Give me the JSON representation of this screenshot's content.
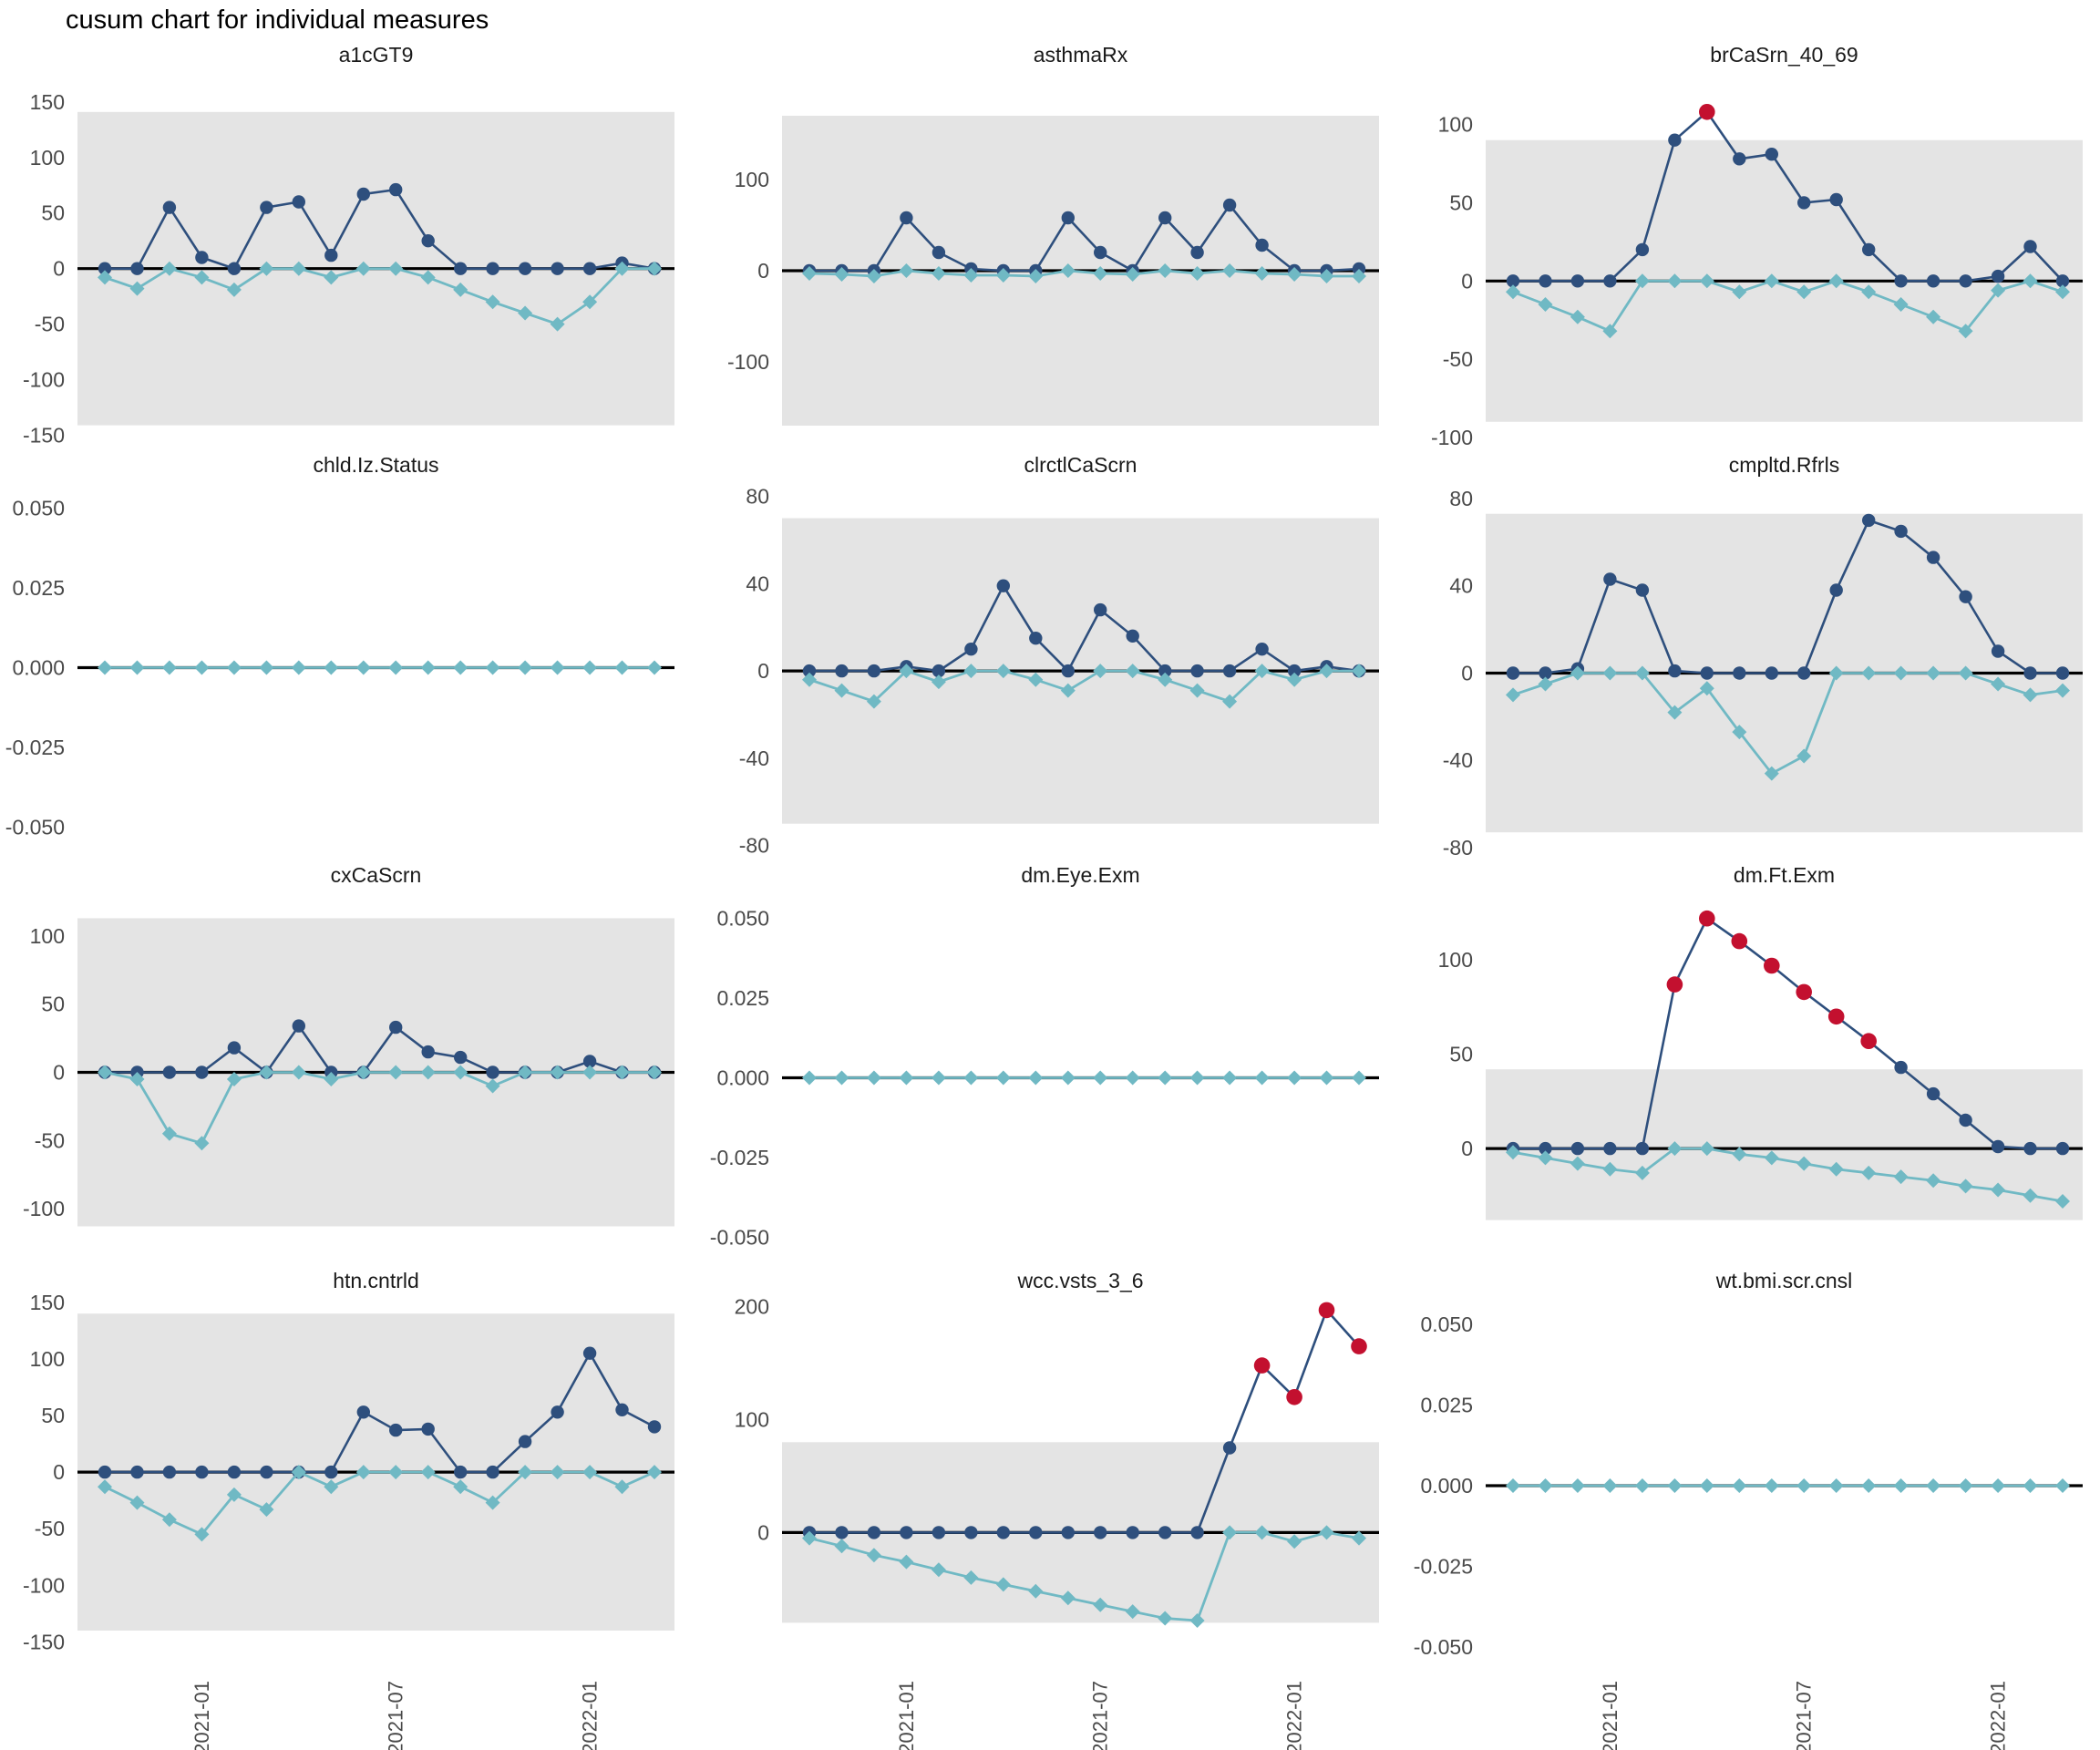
{
  "chart_data": {
    "type": "line",
    "title": "cusum chart for individual measures",
    "subtitle": "",
    "legend_position": "none",
    "grid": "off",
    "x": {
      "n_points": 18,
      "tick_indices": [
        3,
        9,
        15
      ],
      "tick_labels": [
        "2021-01",
        "2021-07",
        "2022-01"
      ]
    },
    "colors": {
      "upper_series": "#2e4f7d",
      "lower_series": "#70b9c4",
      "signal_point": "#c3102f",
      "control_band": "#e4e4e4",
      "zero_line": "#000000",
      "tick_text": "#4a4a4a",
      "facet_title_text": "#1a1a1a"
    },
    "facets": [
      {
        "title": "a1cGT9",
        "ylim": [
          -152,
          172
        ],
        "band": [
          -141,
          141
        ],
        "yticks": [
          {
            "v": 150,
            "label": "150"
          },
          {
            "v": 100,
            "label": "100"
          },
          {
            "v": 50,
            "label": "50"
          },
          {
            "v": 0,
            "label": "0"
          },
          {
            "v": -50,
            "label": "-50"
          },
          {
            "v": -100,
            "label": "-100"
          },
          {
            "v": -150,
            "label": "-150"
          }
        ],
        "upper": [
          0,
          0,
          55,
          10,
          0,
          55,
          60,
          12,
          67,
          71,
          25,
          0,
          0,
          0,
          0,
          0,
          5,
          0
        ],
        "lower": [
          -8,
          -18,
          0,
          -8,
          -19,
          0,
          0,
          -8,
          0,
          0,
          -8,
          -19,
          -30,
          -40,
          -50,
          -30,
          0,
          0
        ],
        "signal_indices": []
      },
      {
        "title": "asthmaRx",
        "ylim": [
          -183,
          212
        ],
        "band": [
          -170,
          170
        ],
        "yticks": [
          {
            "v": 100,
            "label": "100"
          },
          {
            "v": 0,
            "label": "0"
          },
          {
            "v": -100,
            "label": "-100"
          }
        ],
        "upper": [
          0,
          0,
          0,
          58,
          20,
          2,
          0,
          0,
          58,
          20,
          0,
          58,
          20,
          72,
          28,
          0,
          0,
          2
        ],
        "lower": [
          -3,
          -4,
          -6,
          0,
          -3,
          -5,
          -5,
          -6,
          0,
          -3,
          -4,
          0,
          -3,
          0,
          -3,
          -4,
          -6,
          -6
        ],
        "signal_indices": []
      },
      {
        "title": "brCaSrn_40_69",
        "ylim": [
          -100,
          130
        ],
        "band": [
          -90,
          90
        ],
        "yticks": [
          {
            "v": 100,
            "label": "100"
          },
          {
            "v": 50,
            "label": "50"
          },
          {
            "v": 0,
            "label": "0"
          },
          {
            "v": -50,
            "label": "-50"
          },
          {
            "v": -100,
            "label": "-100"
          }
        ],
        "upper": [
          0,
          0,
          0,
          0,
          20,
          90,
          108,
          78,
          81,
          50,
          52,
          20,
          0,
          0,
          0,
          3,
          22,
          0
        ],
        "lower": [
          -7,
          -15,
          -23,
          -32,
          0,
          0,
          0,
          -7,
          0,
          -7,
          0,
          -7,
          -15,
          -23,
          -32,
          -6,
          0,
          -7
        ],
        "signal_indices": [
          6
        ]
      },
      {
        "title": "chld.Iz.Status",
        "ylim": [
          -0.0565,
          0.0565
        ],
        "band": null,
        "yticks": [
          {
            "v": 0.05,
            "label": "0.050"
          },
          {
            "v": 0.025,
            "label": "0.025"
          },
          {
            "v": 0.0,
            "label": "0.000"
          },
          {
            "v": -0.025,
            "label": "-0.025"
          },
          {
            "v": -0.05,
            "label": "-0.050"
          }
        ],
        "upper": null,
        "lower": [
          0,
          0,
          0,
          0,
          0,
          0,
          0,
          0,
          0,
          0,
          0,
          0,
          0,
          0,
          0,
          0,
          0,
          0
        ],
        "signal_indices": []
      },
      {
        "title": "clrctlCaScrn",
        "ylim": [
          -81,
          84
        ],
        "band": [
          -70,
          70
        ],
        "yticks": [
          {
            "v": 80,
            "label": "80"
          },
          {
            "v": 40,
            "label": "40"
          },
          {
            "v": 0,
            "label": "0"
          },
          {
            "v": -40,
            "label": "-40"
          },
          {
            "v": -80,
            "label": "-80"
          }
        ],
        "upper": [
          0,
          0,
          0,
          2,
          0,
          10,
          39,
          15,
          0,
          28,
          16,
          0,
          0,
          0,
          10,
          0,
          2,
          0
        ],
        "lower": [
          -4,
          -9,
          -14,
          0,
          -5,
          0,
          0,
          -4,
          -9,
          0,
          0,
          -4,
          -9,
          -14,
          0,
          -4,
          0,
          0
        ],
        "signal_indices": []
      },
      {
        "title": "cmpltd.Rfrls",
        "ylim": [
          -80,
          85
        ],
        "band": [
          -73,
          73
        ],
        "yticks": [
          {
            "v": 80,
            "label": "80"
          },
          {
            "v": 40,
            "label": "40"
          },
          {
            "v": 0,
            "label": "0"
          },
          {
            "v": -40,
            "label": "-40"
          },
          {
            "v": -80,
            "label": "-80"
          }
        ],
        "upper": [
          0,
          0,
          2,
          43,
          38,
          1,
          0,
          0,
          0,
          0,
          38,
          70,
          65,
          53,
          35,
          10,
          0,
          0
        ],
        "lower": [
          -10,
          -5,
          0,
          0,
          0,
          -18,
          -7,
          -27,
          -46,
          -38,
          0,
          0,
          0,
          0,
          0,
          -5,
          -10,
          -8
        ],
        "signal_indices": []
      },
      {
        "title": "cxCaScrn",
        "ylim": [
          -136,
          128
        ],
        "band": [
          -113,
          113
        ],
        "yticks": [
          {
            "v": 100,
            "label": "100"
          },
          {
            "v": 50,
            "label": "50"
          },
          {
            "v": 0,
            "label": "0"
          },
          {
            "v": -50,
            "label": "-50"
          },
          {
            "v": -100,
            "label": "-100"
          }
        ],
        "upper": [
          0,
          0,
          0,
          0,
          18,
          0,
          34,
          0,
          0,
          33,
          15,
          11,
          0,
          0,
          0,
          8,
          0,
          0
        ],
        "lower": [
          0,
          -5,
          -45,
          -52,
          -5,
          0,
          0,
          -5,
          0,
          0,
          0,
          0,
          -10,
          0,
          0,
          0,
          0,
          0
        ],
        "signal_indices": []
      },
      {
        "title": "dm.Eye.Exm",
        "ylim": [
          -0.0565,
          0.0565
        ],
        "band": null,
        "yticks": [
          {
            "v": 0.05,
            "label": "0.050"
          },
          {
            "v": 0.025,
            "label": "0.025"
          },
          {
            "v": 0.0,
            "label": "0.000"
          },
          {
            "v": -0.025,
            "label": "-0.025"
          },
          {
            "v": -0.05,
            "label": "-0.050"
          }
        ],
        "upper": null,
        "lower": [
          0,
          0,
          0,
          0,
          0,
          0,
          0,
          0,
          0,
          0,
          0,
          0,
          0,
          0,
          0,
          0,
          0,
          0
        ],
        "signal_indices": []
      },
      {
        "title": "dm.Ft.Exm",
        "ylim": [
          -58,
          133
        ],
        "band": [
          -38,
          42
        ],
        "yticks": [
          {
            "v": 100,
            "label": "100"
          },
          {
            "v": 50,
            "label": "50"
          },
          {
            "v": 0,
            "label": "0"
          }
        ],
        "upper": [
          0,
          0,
          0,
          0,
          0,
          87,
          122,
          110,
          97,
          83,
          70,
          57,
          43,
          29,
          15,
          1,
          0,
          0
        ],
        "lower": [
          -2,
          -5,
          -8,
          -11,
          -13,
          0,
          0,
          -3,
          -5,
          -8,
          -11,
          -13,
          -15,
          -17,
          -20,
          -22,
          -25,
          -28
        ],
        "signal_indices": [
          5,
          6,
          7,
          8,
          9,
          10,
          11
        ]
      },
      {
        "title": "htn.cntrld",
        "ylim": [
          -173,
          149
        ],
        "band": [
          -140,
          140
        ],
        "yticks": [
          {
            "v": 150,
            "label": "150"
          },
          {
            "v": 100,
            "label": "100"
          },
          {
            "v": 50,
            "label": "50"
          },
          {
            "v": 0,
            "label": "0"
          },
          {
            "v": -50,
            "label": "-50"
          },
          {
            "v": -100,
            "label": "-100"
          },
          {
            "v": -150,
            "label": "-150"
          }
        ],
        "upper": [
          0,
          0,
          0,
          0,
          0,
          0,
          0,
          0,
          53,
          37,
          38,
          0,
          0,
          27,
          53,
          105,
          55,
          40
        ],
        "lower": [
          -13,
          -27,
          -42,
          -55,
          -20,
          -33,
          0,
          -13,
          0,
          0,
          0,
          -13,
          -27,
          0,
          0,
          0,
          -13,
          0
        ],
        "signal_indices": []
      },
      {
        "title": "wcc.vsts_3_6",
        "ylim": [
          -120,
          203
        ],
        "band": [
          -80,
          80
        ],
        "yticks": [
          {
            "v": 200,
            "label": "200"
          },
          {
            "v": 100,
            "label": "100"
          },
          {
            "v": 0,
            "label": "0"
          }
        ],
        "upper": [
          0,
          0,
          0,
          0,
          0,
          0,
          0,
          0,
          0,
          0,
          0,
          0,
          0,
          75,
          148,
          120,
          197,
          165
        ],
        "lower": [
          -5,
          -12,
          -20,
          -26,
          -33,
          -40,
          -46,
          -52,
          -58,
          -64,
          -70,
          -76,
          -78,
          0,
          0,
          -8,
          0,
          -5
        ],
        "signal_indices": [
          14,
          15,
          16,
          17
        ]
      },
      {
        "title": "wt.bmi.scr.cnsl",
        "ylim": [
          -0.0565,
          0.0565
        ],
        "band": null,
        "yticks": [
          {
            "v": 0.05,
            "label": "0.050"
          },
          {
            "v": 0.025,
            "label": "0.025"
          },
          {
            "v": 0.0,
            "label": "0.000"
          },
          {
            "v": -0.025,
            "label": "-0.025"
          },
          {
            "v": -0.05,
            "label": "-0.050"
          }
        ],
        "upper": null,
        "lower": [
          0,
          0,
          0,
          0,
          0,
          0,
          0,
          0,
          0,
          0,
          0,
          0,
          0,
          0,
          0,
          0,
          0,
          0
        ],
        "signal_indices": []
      }
    ]
  }
}
